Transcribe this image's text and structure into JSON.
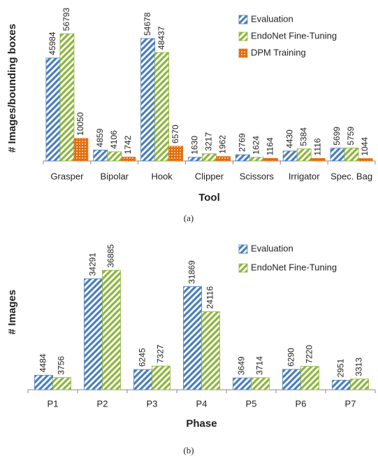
{
  "chart_data": [
    {
      "type": "bar",
      "x_label": "Tool",
      "y_label": "# Images/bounding boxes",
      "caption": "(a)",
      "categories": [
        "Grasper",
        "Bipolar",
        "Hook",
        "Clipper",
        "Scissors",
        "Irrigator",
        "Spec. Bag"
      ],
      "series": [
        {
          "name": "Evaluation",
          "color": "#4a7ebb",
          "pattern": "stripes",
          "values": [
            45984,
            4859,
            54678,
            1630,
            2769,
            4430,
            5699
          ]
        },
        {
          "name": "EndoNet Fine-Tuning",
          "color": "#8db53e",
          "pattern": "stripes",
          "values": [
            56793,
            4106,
            48437,
            3217,
            1624,
            5384,
            5759
          ]
        },
        {
          "name": "DPM Training",
          "color": "#e46c0a",
          "pattern": "dots",
          "values": [
            10050,
            1742,
            6570,
            1962,
            1164,
            1116,
            1044
          ]
        }
      ],
      "ylim": [
        0,
        65000
      ],
      "legend": "upper right"
    },
    {
      "type": "bar",
      "x_label": "Phase",
      "y_label": "# Images",
      "caption": "(b)",
      "categories": [
        "P1",
        "P2",
        "P3",
        "P4",
        "P5",
        "P6",
        "P7"
      ],
      "series": [
        {
          "name": "Evaluation",
          "color": "#4a7ebb",
          "pattern": "stripes",
          "values": [
            4484,
            34291,
            6245,
            31869,
            3649,
            6290,
            2951
          ]
        },
        {
          "name": "EndoNet Fine-Tuning",
          "color": "#8db53e",
          "pattern": "stripes",
          "values": [
            3756,
            36885,
            7327,
            24116,
            3714,
            7220,
            3313
          ]
        }
      ],
      "ylim": [
        0,
        48000
      ],
      "legend": "upper right"
    }
  ]
}
